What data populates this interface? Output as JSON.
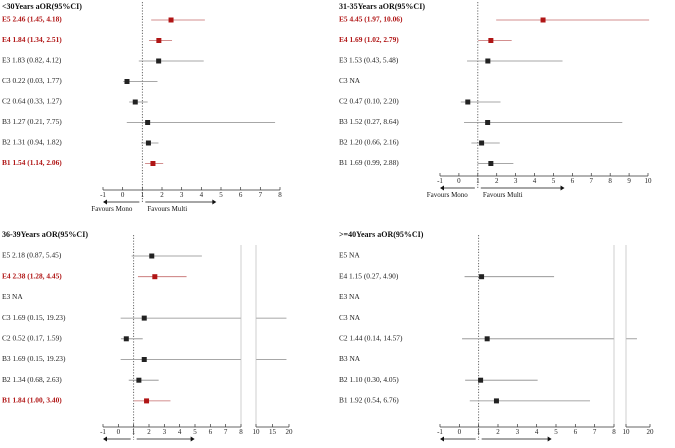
{
  "colors": {
    "significant": "#b01515",
    "normal": "#222222",
    "ci_normal": "#8a8a8a",
    "ci_significant": "#c46a6a"
  },
  "axis_text": {
    "left": "Favours Mono",
    "right": "Favours Multi"
  },
  "chart_data": [
    {
      "type": "forest",
      "title": "<30Years  aOR(95%CI)",
      "xlim": [
        -1,
        8
      ],
      "ticks": [
        "-1",
        "0",
        "1",
        "2",
        "3",
        "4",
        "5",
        "6",
        "7",
        "8"
      ],
      "reference_line": 1,
      "rows": [
        {
          "label": "E5 2.46 (1.45, 4.18)",
          "or": 2.46,
          "lo": 1.45,
          "hi": 4.18,
          "significant": true
        },
        {
          "label": "E4 1.84 (1.34, 2.51)",
          "or": 1.84,
          "lo": 1.34,
          "hi": 2.51,
          "significant": true
        },
        {
          "label": "E3 1.83 (0.82, 4.12)",
          "or": 1.83,
          "lo": 0.82,
          "hi": 4.12,
          "significant": false
        },
        {
          "label": "C3 0.22 (0.03, 1.77)",
          "or": 0.22,
          "lo": 0.03,
          "hi": 1.77,
          "significant": false
        },
        {
          "label": "C2 0.64 (0.33, 1.27)",
          "or": 0.64,
          "lo": 0.33,
          "hi": 1.27,
          "significant": false
        },
        {
          "label": "B3 1.27 (0.21, 7.75)",
          "or": 1.27,
          "lo": 0.21,
          "hi": 7.75,
          "significant": false
        },
        {
          "label": "B2 1.31 (0.94, 1.82)",
          "or": 1.31,
          "lo": 0.94,
          "hi": 1.82,
          "significant": false
        },
        {
          "label": "B1 1.54 (1.14, 2.06)",
          "or": 1.54,
          "lo": 1.14,
          "hi": 2.06,
          "significant": true
        }
      ]
    },
    {
      "type": "forest",
      "title": "31-35Years  aOR(95%CI)",
      "xlim": [
        -1,
        10
      ],
      "ticks": [
        "-1",
        "0",
        "1",
        "2",
        "3",
        "4",
        "5",
        "6",
        "7",
        "8",
        "9",
        "10"
      ],
      "reference_line": 1,
      "rows": [
        {
          "label": "E5 4.45 (1.97, 10.06)",
          "or": 4.45,
          "lo": 1.97,
          "hi": 10.06,
          "significant": true
        },
        {
          "label": "E4 1.69 (1.02, 2.79)",
          "or": 1.69,
          "lo": 1.02,
          "hi": 2.79,
          "significant": true
        },
        {
          "label": "E3 1.53 (0.43, 5.48)",
          "or": 1.53,
          "lo": 0.43,
          "hi": 5.48,
          "significant": false
        },
        {
          "label": "C3 NA",
          "or": null,
          "lo": null,
          "hi": null,
          "significant": false
        },
        {
          "label": "C2 0.47 (0.10, 2.20)",
          "or": 0.47,
          "lo": 0.1,
          "hi": 2.2,
          "significant": false
        },
        {
          "label": "B3 1.52 (0.27, 8.64)",
          "or": 1.52,
          "lo": 0.27,
          "hi": 8.64,
          "significant": false
        },
        {
          "label": "B2 1.20 (0.66, 2.16)",
          "or": 1.2,
          "lo": 0.66,
          "hi": 2.16,
          "significant": false
        },
        {
          "label": "B1 1.69 (0.99, 2.88)",
          "or": 1.69,
          "lo": 0.99,
          "hi": 2.88,
          "significant": false
        }
      ]
    },
    {
      "type": "forest",
      "title": "36-39Years  aOR(95%CI)",
      "xlim": [
        -1,
        20
      ],
      "axis_break": [
        8,
        10
      ],
      "ticks": [
        "-1",
        "0",
        "1",
        "2",
        "3",
        "4",
        "5",
        "6",
        "7",
        "8",
        "10",
        "15",
        "20"
      ],
      "reference_line": 1,
      "rows": [
        {
          "label": "E5 2.18 (0.87, 5.45)",
          "or": 2.18,
          "lo": 0.87,
          "hi": 5.45,
          "significant": false
        },
        {
          "label": "E4 2.38 (1.28, 4.45)",
          "or": 2.38,
          "lo": 1.28,
          "hi": 4.45,
          "significant": true
        },
        {
          "label": "E3 NA",
          "or": null,
          "lo": null,
          "hi": null,
          "significant": false
        },
        {
          "label": "C3 1.69 (0.15, 19.23)",
          "or": 1.69,
          "lo": 0.15,
          "hi": 19.23,
          "significant": false
        },
        {
          "label": "C2 0.52 (0.17, 1.59)",
          "or": 0.52,
          "lo": 0.17,
          "hi": 1.59,
          "significant": false
        },
        {
          "label": "B3 1.69 (0.15, 19.23)",
          "or": 1.69,
          "lo": 0.15,
          "hi": 19.23,
          "significant": false
        },
        {
          "label": "B2 1.34 (0.68, 2.63)",
          "or": 1.34,
          "lo": 0.68,
          "hi": 2.63,
          "significant": false
        },
        {
          "label": "B1 1.84 (1.00, 3.40)",
          "or": 1.84,
          "lo": 1.0,
          "hi": 3.4,
          "significant": true
        }
      ]
    },
    {
      "type": "forest",
      "title": ">=40Years  aOR(95%CI)",
      "xlim": [
        -1,
        20
      ],
      "axis_break": [
        8,
        10
      ],
      "ticks": [
        "-1",
        "0",
        "1",
        "2",
        "3",
        "4",
        "5",
        "6",
        "7",
        "8",
        "10",
        "20"
      ],
      "reference_line": 1,
      "rows": [
        {
          "label": "E5 NA",
          "or": null,
          "lo": null,
          "hi": null,
          "significant": false
        },
        {
          "label": "E4 1.15 (0.27, 4.90)",
          "or": 1.15,
          "lo": 0.27,
          "hi": 4.9,
          "significant": false
        },
        {
          "label": "E3 NA",
          "or": null,
          "lo": null,
          "hi": null,
          "significant": false
        },
        {
          "label": "C3 NA",
          "or": null,
          "lo": null,
          "hi": null,
          "significant": false
        },
        {
          "label": "C2 1.44 (0.14, 14.57)",
          "or": 1.44,
          "lo": 0.14,
          "hi": 14.57,
          "significant": false
        },
        {
          "label": "B3 NA",
          "or": null,
          "lo": null,
          "hi": null,
          "significant": false
        },
        {
          "label": "B2 1.10 (0.30, 4.05)",
          "or": 1.1,
          "lo": 0.3,
          "hi": 4.05,
          "significant": false
        },
        {
          "label": "B1 1.92 (0.54, 6.76)",
          "or": 1.92,
          "lo": 0.54,
          "hi": 6.76,
          "significant": false
        }
      ]
    }
  ]
}
